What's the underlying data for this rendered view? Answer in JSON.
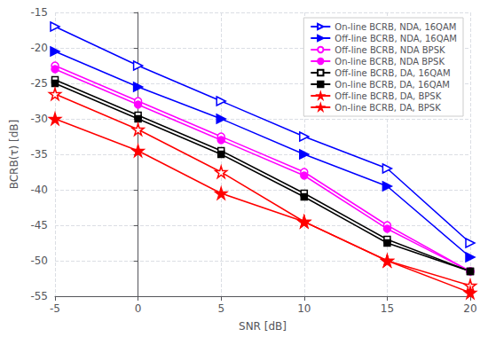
{
  "chart_data": {
    "type": "line",
    "xlabel": "SNR [dB]",
    "ylabel": "BCRB(τ) [dB]",
    "x": [
      -5,
      0,
      5,
      10,
      15,
      20
    ],
    "xlim": [
      -5,
      20
    ],
    "ylim": [
      -55,
      -15
    ],
    "xticks": [
      -5,
      0,
      5,
      10,
      15,
      20
    ],
    "yticks": [
      -55,
      -50,
      -45,
      -40,
      -35,
      -30,
      -25,
      -20,
      -15
    ],
    "grid": true,
    "legend": "upper right",
    "series": [
      {
        "name": "On-line BCRB, NDA, 16QAM",
        "color": "#0000FF",
        "marker": "triangle-right-open",
        "line_style": "solid",
        "values": [
          -17.0,
          -22.5,
          -27.5,
          -32.5,
          -37.0,
          -47.5
        ]
      },
      {
        "name": "Off-line BCRB, NDA, 16QAM",
        "color": "#0000FF",
        "marker": "triangle-right",
        "line_style": "solid",
        "values": [
          -20.5,
          -25.5,
          -30.0,
          -35.0,
          -39.5,
          -49.5
        ]
      },
      {
        "name": "Off-line BCRB, NDA BPSK",
        "color": "#FF00FF",
        "marker": "circle-open",
        "line_style": "solid",
        "values": [
          -22.5,
          -27.5,
          -32.5,
          -37.5,
          -45.0,
          -51.5
        ]
      },
      {
        "name": "On-line BCRB, NDA BPSK",
        "color": "#FF00FF",
        "marker": "circle",
        "line_style": "solid",
        "values": [
          -23.0,
          -28.0,
          -33.0,
          -38.0,
          -45.5,
          -51.5
        ]
      },
      {
        "name": "Off-line BCRB, DA, 16QAM",
        "color": "#000000",
        "marker": "square-open",
        "line_style": "solid",
        "values": [
          -24.5,
          -29.5,
          -34.5,
          -40.5,
          -47.0,
          -51.5
        ]
      },
      {
        "name": "On-line BCRB, DA, 16QAM",
        "color": "#000000",
        "marker": "square",
        "line_style": "solid",
        "values": [
          -25.0,
          -30.0,
          -35.0,
          -41.0,
          -47.5,
          -51.5
        ]
      },
      {
        "name": "Off-line BCRB, DA, BPSK",
        "color": "#FF0000",
        "marker": "star-open",
        "line_style": "solid",
        "values": [
          -26.5,
          -31.5,
          -37.5,
          -44.5,
          -50.0,
          -53.5
        ]
      },
      {
        "name": "On-line BCRB, DA, BPSK",
        "color": "#FF0000",
        "marker": "star",
        "line_style": "solid",
        "values": [
          -30.0,
          -34.5,
          -40.5,
          -44.5,
          -50.0,
          -54.5
        ]
      }
    ]
  }
}
